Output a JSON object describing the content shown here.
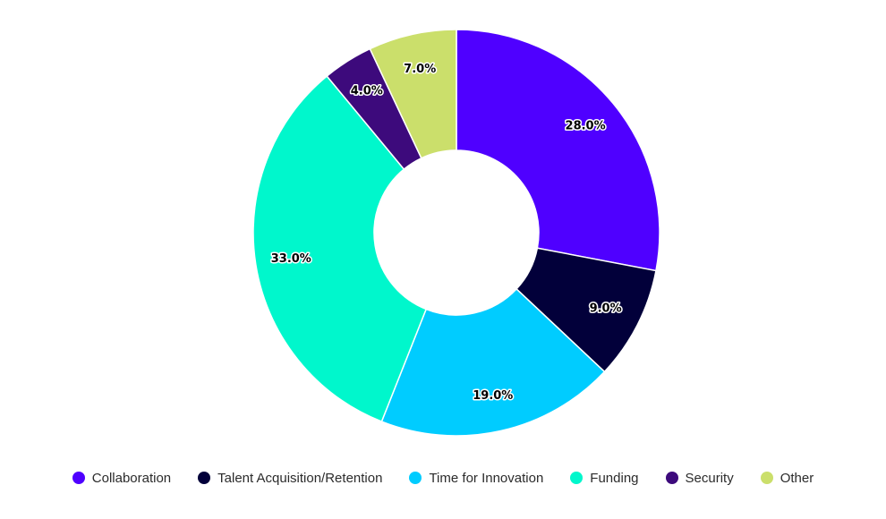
{
  "chart_data": {
    "type": "pie",
    "donut": true,
    "categories": [
      "Collaboration",
      "Talent Acquisition/Retention",
      "Time for Innovation",
      "Funding",
      "Security",
      "Other"
    ],
    "values": [
      28.0,
      9.0,
      19.0,
      33.0,
      4.0,
      7.0
    ],
    "labels": [
      "28.0%",
      "9.0%",
      "19.0%",
      "33.0%",
      "4.0%",
      "7.0%"
    ],
    "colors": [
      "#4f00ff",
      "#02003a",
      "#00ccff",
      "#00f7cc",
      "#3d0a7c",
      "#cbdf6b"
    ],
    "legend_position": "bottom",
    "start": "top",
    "direction": "clockwise"
  }
}
